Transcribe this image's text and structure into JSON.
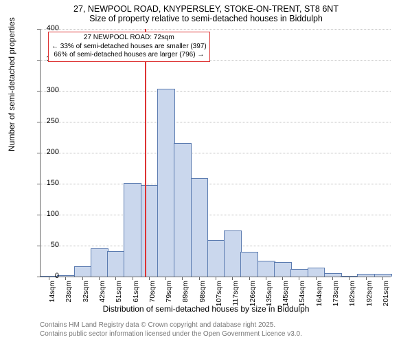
{
  "chart": {
    "type": "histogram",
    "title_line1": "27, NEWPOOL ROAD, KNYPERSLEY, STOKE-ON-TRENT, ST8 6NT",
    "title_line2": "Size of property relative to semi-detached houses in Biddulph",
    "ylabel": "Number of semi-detached properties",
    "xlabel": "Distribution of semi-detached houses by size in Biddulph",
    "ylim": [
      0,
      400
    ],
    "ytick_step": 50,
    "yticks": [
      0,
      50,
      100,
      150,
      200,
      250,
      300,
      350,
      400
    ],
    "x_categories": [
      "14sqm",
      "23sqm",
      "32sqm",
      "42sqm",
      "51sqm",
      "61sqm",
      "70sqm",
      "79sqm",
      "89sqm",
      "98sqm",
      "107sqm",
      "117sqm",
      "126sqm",
      "135sqm",
      "145sqm",
      "154sqm",
      "164sqm",
      "173sqm",
      "182sqm",
      "192sqm",
      "201sqm"
    ],
    "values": [
      0,
      1,
      16,
      44,
      40,
      150,
      147,
      302,
      215,
      158,
      58,
      73,
      39,
      24,
      22,
      11,
      13,
      4,
      0,
      3,
      3
    ],
    "bar_fill": "#cad7ed",
    "bar_stroke": "#5b7bb0",
    "grid_color": "#bbbbbb",
    "axis_color": "#666666",
    "background": "#ffffff",
    "title_fontsize": 12.5,
    "label_fontsize": 12,
    "tick_fontsize": 11,
    "annotation": {
      "border_color": "#d33",
      "bg_color": "#ffffff",
      "line_color": "#d33",
      "line1": "27 NEWPOOL ROAD: 72sqm",
      "line2": "← 33% of semi-detached houses are smaller (397)",
      "line3": "66% of semi-detached houses are larger (796) →",
      "marker_bin_index": 6
    },
    "footer_line1": "Contains HM Land Registry data © Crown copyright and database right 2025.",
    "footer_line2": "Contains public sector information licensed under the Open Government Licence v3.0."
  }
}
